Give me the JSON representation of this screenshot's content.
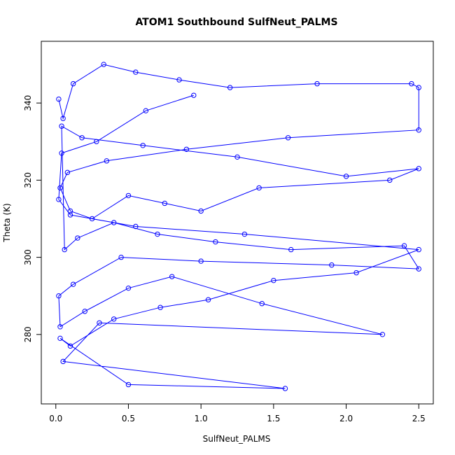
{
  "chart_data": {
    "type": "scatter",
    "title": "ATOM1 Southbound SulfNeut_PALMS",
    "xlabel": "SulfNeut_PALMS",
    "ylabel": "Theta (K)",
    "xlim": [
      -0.1,
      2.6
    ],
    "ylim": [
      262,
      356
    ],
    "x_ticks": [
      0.0,
      0.5,
      1.0,
      1.5,
      2.0,
      2.5
    ],
    "x_tick_labels": [
      "0.0",
      "0.5",
      "1.0",
      "1.5",
      "2.0",
      "2.5"
    ],
    "y_ticks": [
      280,
      300,
      320,
      340
    ],
    "y_tick_labels": [
      "280",
      "300",
      "320",
      "340"
    ],
    "grid": false,
    "legend": "none",
    "series": [
      {
        "color": "#0000ff",
        "marker": "open-circle",
        "line": true,
        "x": [
          0.02,
          0.05,
          0.12,
          0.33,
          0.55,
          0.85,
          1.2,
          1.8,
          2.45,
          2.5,
          2.5,
          1.6,
          0.9,
          0.35,
          0.08,
          0.03,
          0.1,
          0.25,
          0.5,
          0.75,
          1.0,
          1.4,
          2.3,
          2.5,
          2.0,
          1.25,
          0.6,
          0.18,
          0.04,
          0.06,
          0.15,
          0.4,
          0.7,
          1.1,
          1.62,
          2.4,
          2.5,
          1.9,
          1.0,
          0.45,
          0.12,
          0.02,
          0.03,
          0.2,
          0.5,
          0.8,
          1.42,
          2.25,
          0.3,
          0.05,
          1.58,
          0.5,
          0.03,
          0.1,
          0.4,
          0.72,
          1.05,
          1.5,
          2.07,
          2.5,
          1.3,
          0.55,
          0.1,
          0.02,
          0.04,
          0.28,
          0.62,
          0.95
        ],
        "y": [
          341,
          336,
          345,
          350,
          348,
          346,
          344,
          345,
          345,
          344,
          333,
          331,
          328,
          325,
          322,
          318,
          312,
          310,
          316,
          314,
          312,
          318,
          320,
          323,
          321,
          326,
          329,
          331,
          334,
          302,
          305,
          309,
          306,
          304,
          302,
          303,
          297,
          298,
          299,
          300,
          293,
          290,
          282,
          286,
          292,
          295,
          288,
          280,
          283,
          273,
          266,
          267,
          279,
          277,
          284,
          287,
          289,
          294,
          296,
          302,
          306,
          308,
          311,
          315,
          327,
          330,
          338,
          342
        ]
      }
    ]
  }
}
